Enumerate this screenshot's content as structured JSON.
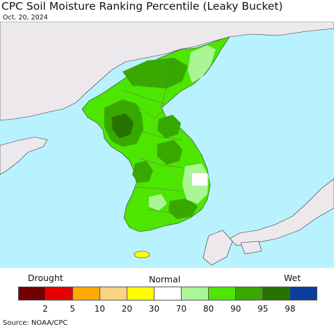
{
  "title": "CPC Soil Moisture Ranking Percentile (Leaky Bucket)",
  "date": "Oct. 20, 2024",
  "legend": {
    "drought_label": "Drought",
    "normal_label": "Normal",
    "wet_label": "Wet",
    "colors": [
      "#730000",
      "#e60000",
      "#ffaa00",
      "#fcd37f",
      "#ffff00",
      "#ffffff",
      "#aaf596",
      "#4ce600",
      "#38a800",
      "#267300",
      "#0a3e9c"
    ],
    "ticks": [
      "2",
      "5",
      "10",
      "20",
      "30",
      "70",
      "80",
      "90",
      "95",
      "98"
    ]
  },
  "source": "Source: NOAA/CPC",
  "map_colors": {
    "sea": "#b9f2ff",
    "land": "#ece8ec",
    "pct_80_90": "#4ce600",
    "pct_90_95": "#38a800",
    "pct_95_98": "#267300",
    "pct_70_80": "#aaf596",
    "pct_30_70": "#ffffff",
    "pct_20_30": "#ffff00"
  }
}
